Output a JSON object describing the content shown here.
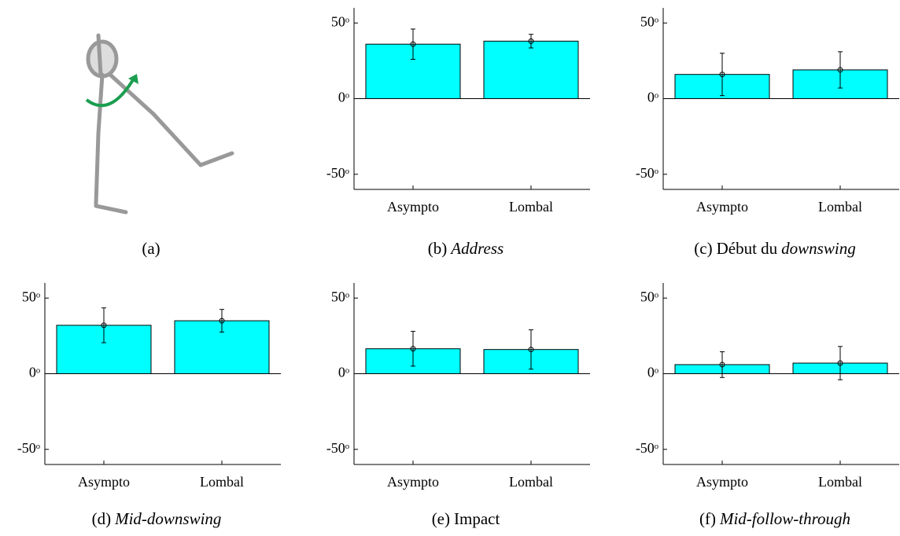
{
  "panel_a": {
    "caption": "(a)"
  },
  "chart_data": [
    {
      "type": "bar",
      "caption": [
        "(b)",
        "Address"
      ],
      "caption_italic": [
        false,
        true
      ],
      "categories": [
        "Asympto",
        "Lombal"
      ],
      "values": [
        36,
        38
      ],
      "errors": [
        10,
        4.5
      ],
      "color": "#00ffff",
      "ylim": [
        -60,
        60
      ],
      "yticks": [
        {
          "value": -50,
          "label": "-50ᵒ"
        },
        {
          "value": 0,
          "label": "0ᵒ"
        },
        {
          "value": 50,
          "label": "50ᵒ"
        }
      ]
    },
    {
      "type": "bar",
      "caption": [
        "(c)",
        "Début du",
        "downswing"
      ],
      "caption_italic": [
        false,
        false,
        true
      ],
      "categories": [
        "Asympto",
        "Lombal"
      ],
      "values": [
        16,
        19
      ],
      "errors": [
        14,
        12
      ],
      "color": "#00ffff",
      "ylim": [
        -60,
        60
      ],
      "yticks": [
        {
          "value": -50,
          "label": "-50ᵒ"
        },
        {
          "value": 0,
          "label": "0ᵒ"
        },
        {
          "value": 50,
          "label": "50ᵒ"
        }
      ]
    },
    {
      "type": "bar",
      "caption": [
        "(d)",
        "Mid-downswing"
      ],
      "caption_italic": [
        false,
        true
      ],
      "categories": [
        "Asympto",
        "Lombal"
      ],
      "values": [
        32,
        35
      ],
      "errors": [
        11.5,
        7.5
      ],
      "color": "#00ffff",
      "ylim": [
        -60,
        60
      ],
      "yticks": [
        {
          "value": -50,
          "label": "-50ᵒ"
        },
        {
          "value": 0,
          "label": "0ᵒ"
        },
        {
          "value": 50,
          "label": "50ᵒ"
        }
      ]
    },
    {
      "type": "bar",
      "caption": [
        "(e)",
        "Impact"
      ],
      "caption_italic": [
        false,
        false
      ],
      "categories": [
        "Asympto",
        "Lombal"
      ],
      "values": [
        16.5,
        16
      ],
      "errors": [
        11.5,
        13
      ],
      "color": "#00ffff",
      "ylim": [
        -60,
        60
      ],
      "yticks": [
        {
          "value": -50,
          "label": "-50ᵒ"
        },
        {
          "value": 0,
          "label": "0ᵒ"
        },
        {
          "value": 50,
          "label": "50ᵒ"
        }
      ]
    },
    {
      "type": "bar",
      "caption": [
        "(f)",
        "Mid-follow-through"
      ],
      "caption_italic": [
        false,
        true
      ],
      "categories": [
        "Asympto",
        "Lombal"
      ],
      "values": [
        6,
        7
      ],
      "errors": [
        8.5,
        11
      ],
      "color": "#00ffff",
      "ylim": [
        -60,
        60
      ],
      "yticks": [
        {
          "value": -50,
          "label": "-50ᵒ"
        },
        {
          "value": 0,
          "label": "0ᵒ"
        },
        {
          "value": 50,
          "label": "50ᵒ"
        }
      ]
    }
  ]
}
